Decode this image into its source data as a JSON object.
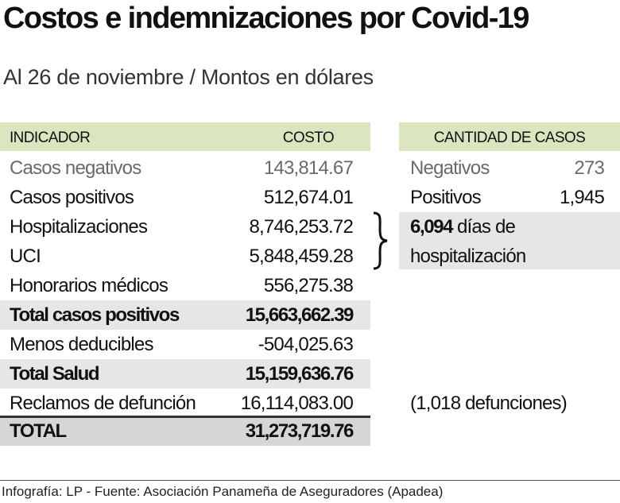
{
  "header": {
    "title": "Costos e indemnizaciones por Covid-19",
    "subtitle": "Al 26 de noviembre / Montos en dólares"
  },
  "costs_table": {
    "headers": [
      "INDICADOR",
      "COSTO"
    ],
    "rows": [
      [
        "Casos negativos",
        "143,814.67"
      ],
      [
        "Casos positivos",
        "512,674.01"
      ],
      [
        "Hospitalizaciones",
        "8,746,253.72"
      ],
      [
        "UCI",
        "5,848,459.28"
      ],
      [
        "Honorarios médicos",
        "556,275.38"
      ],
      [
        "Total casos positivos",
        "15,663,662.39"
      ],
      [
        "Menos deducibles",
        "-504,025.63"
      ],
      [
        "Total Salud",
        "15,159,636.76"
      ],
      [
        "Reclamos de defunción",
        "16,114,083.00"
      ],
      [
        "TOTAL",
        "31,273,719.76"
      ]
    ]
  },
  "cases_table": {
    "header": "CANTIDAD DE CASOS",
    "rows": [
      [
        "Negativos",
        "273"
      ],
      [
        "Positivos",
        "1,945"
      ]
    ],
    "hospitalization": {
      "days": "6,094",
      "text_line1": "días de",
      "text_line2": "hospitalización"
    },
    "deaths_note": "(1,018 defunciones)"
  },
  "footer": {
    "source": "Infografía: LP - Fuente: Asociación Panameña de Aseguradores (Apadea)"
  }
}
